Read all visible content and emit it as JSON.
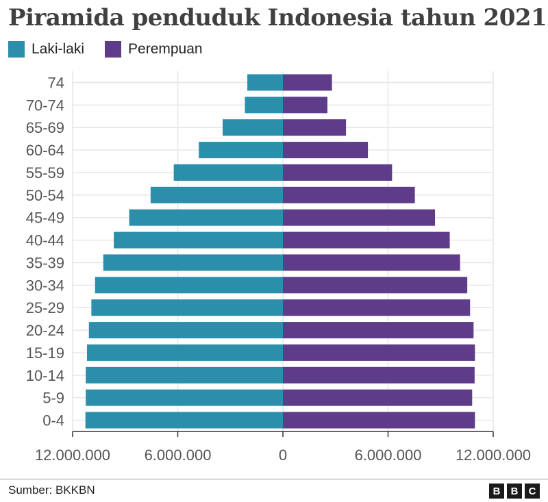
{
  "title": "Piramida penduduk Indonesia tahun 2021",
  "source": "Sumber: BKKBN",
  "logo": [
    "B",
    "B",
    "C"
  ],
  "colors": {
    "male": "#2b8fab",
    "female": "#5f3c89",
    "grid": "#e6e6e6",
    "axis": "#333333",
    "tick_text": "#555555"
  },
  "chart_data": {
    "type": "bar",
    "orientation": "horizontal-diverging",
    "categories": [
      "74",
      "70-74",
      "65-69",
      "60-64",
      "55-59",
      "50-54",
      "45-49",
      "40-44",
      "35-39",
      "30-34",
      "25-29",
      "20-24",
      "15-19",
      "10-14",
      "5-9",
      "0-4"
    ],
    "series": [
      {
        "name": "Laki-laki",
        "side": "left",
        "values": [
          2030000,
          2170000,
          3440000,
          4800000,
          6230000,
          7550000,
          8770000,
          9650000,
          10250000,
          10720000,
          10930000,
          11070000,
          11180000,
          11250000,
          11250000,
          11270000
        ]
      },
      {
        "name": "Perempuan",
        "side": "right",
        "values": [
          2800000,
          2540000,
          3600000,
          4850000,
          6230000,
          7530000,
          8680000,
          9520000,
          10110000,
          10520000,
          10680000,
          10880000,
          10960000,
          10940000,
          10800000,
          10960000
        ]
      }
    ],
    "x_ticks": [
      -12000000,
      -6000000,
      0,
      6000000,
      12000000
    ],
    "x_tick_labels": [
      "12.000.000",
      "6.000.000",
      "0",
      "6.000.000",
      "12.000.000"
    ],
    "xlim": [
      -12000000,
      12000000
    ],
    "grid": true,
    "legend_placement": "top-left"
  }
}
